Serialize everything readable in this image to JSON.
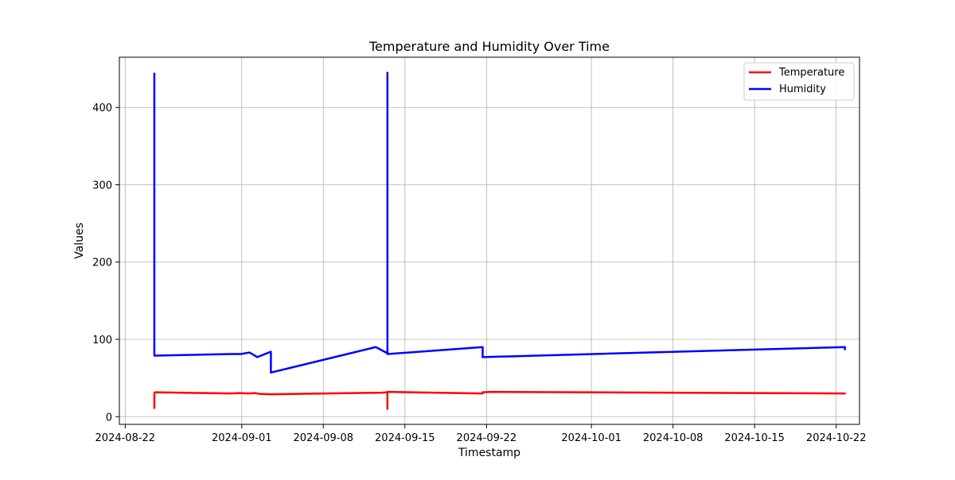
{
  "chart_data": {
    "type": "line",
    "title": "Temperature and Humidity Over Time",
    "xlabel": "Timestamp",
    "ylabel": "Values",
    "x_is_date": true,
    "xlim": [
      "2024-08-21T12:00",
      "2024-10-24T00:00"
    ],
    "ylim": [
      -10,
      465
    ],
    "x_ticks": [
      "2024-08-22",
      "2024-09-01",
      "2024-09-08",
      "2024-09-15",
      "2024-09-22",
      "2024-10-01",
      "2024-10-08",
      "2024-10-15",
      "2024-10-22"
    ],
    "y_ticks": [
      0,
      100,
      200,
      300,
      400
    ],
    "grid": true,
    "legend_position": "top-right",
    "series": [
      {
        "name": "Temperature",
        "color": "#ff0000",
        "points": [
          [
            "2024-08-24T12:00",
            10
          ],
          [
            "2024-08-24T12:00",
            31
          ],
          [
            "2024-08-24T14:00",
            31.5
          ],
          [
            "2024-08-31T00:00",
            30
          ],
          [
            "2024-08-31T19:00",
            30.5
          ],
          [
            "2024-09-01T12:00",
            30
          ],
          [
            "2024-09-02T04:00",
            30.5
          ],
          [
            "2024-09-02T12:00",
            29.5
          ],
          [
            "2024-09-03T12:00",
            29
          ],
          [
            "2024-09-13T00:00",
            31
          ],
          [
            "2024-09-13T12:00",
            31.5
          ],
          [
            "2024-09-13T12:00",
            10
          ],
          [
            "2024-09-13T12:00",
            32
          ],
          [
            "2024-09-21T16:00",
            30
          ],
          [
            "2024-09-21T16:00",
            31.5
          ],
          [
            "2024-09-22T12:00",
            32
          ],
          [
            "2024-10-22T18:00",
            30
          ],
          [
            "2024-10-22T18:00",
            31
          ]
        ]
      },
      {
        "name": "Humidity",
        "color": "#0000ff",
        "points": [
          [
            "2024-08-24T12:00",
            445
          ],
          [
            "2024-08-24T12:00",
            79
          ],
          [
            "2024-08-31T00:00",
            81
          ],
          [
            "2024-08-31T22:00",
            81
          ],
          [
            "2024-09-01T16:00",
            83
          ],
          [
            "2024-09-02T00:00",
            80
          ],
          [
            "2024-09-02T08:00",
            77
          ],
          [
            "2024-09-03T12:00",
            84
          ],
          [
            "2024-09-03T12:00",
            57
          ],
          [
            "2024-09-12T12:00",
            90
          ],
          [
            "2024-09-13T12:00",
            82
          ],
          [
            "2024-09-13T12:00",
            445
          ],
          [
            "2024-09-13T12:00",
            81
          ],
          [
            "2024-09-21T16:00",
            90
          ],
          [
            "2024-09-21T16:00",
            77
          ],
          [
            "2024-10-22T18:00",
            90
          ],
          [
            "2024-10-22T18:00",
            86
          ]
        ]
      }
    ]
  }
}
